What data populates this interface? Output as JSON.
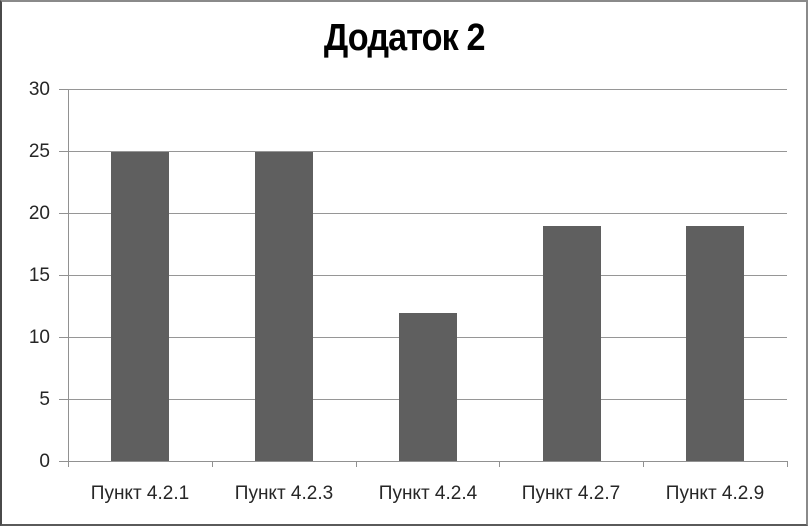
{
  "chart_data": {
    "type": "bar",
    "title": "Додаток 2",
    "categories": [
      "Пункт 4.2.1",
      "Пункт 4.2.3",
      "Пункт 4.2.4",
      "Пункт 4.2.7",
      "Пункт 4.2.9"
    ],
    "values": [
      25,
      25,
      12,
      19,
      19
    ],
    "xlabel": "",
    "ylabel": "",
    "ylim": [
      0,
      30
    ],
    "yticks": [
      0,
      5,
      10,
      15,
      20,
      25,
      30
    ],
    "grid": "horizontal",
    "legend": "none",
    "colors": {
      "bar": "#5f5f5f",
      "grid": "#969696",
      "axis": "#919191",
      "text": "#262626",
      "title": "#000000",
      "background": "#ffffff"
    }
  }
}
